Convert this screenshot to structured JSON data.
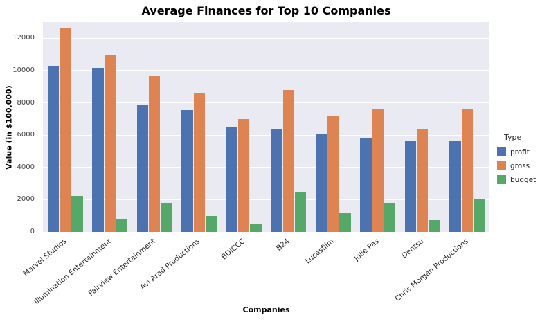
{
  "chart_data": {
    "type": "bar",
    "title": "Average Finances for Top 10 Companies",
    "xlabel": "Companies",
    "ylabel": "Value (in $100,000)",
    "ylim": [
      0,
      13000
    ],
    "yticks": [
      0,
      2000,
      4000,
      6000,
      8000,
      10000,
      12000
    ],
    "grid": true,
    "plot_bg": "#eaeaf2",
    "grid_color": "#ffffff",
    "legend_title": "Type",
    "legend_position": "right",
    "categories": [
      "Marvel Studios",
      "Illumination Entertainment",
      "Fairview Entertainment",
      "Avi Arad Productions",
      "BDICCC",
      "B24",
      "Lucasfilm",
      "Jolie Pas",
      "Dentsu",
      "Chris Morgan Productions"
    ],
    "series": [
      {
        "name": "profit",
        "color": "#4c72b0",
        "values": [
          10300,
          10150,
          7900,
          7550,
          6500,
          6350,
          6050,
          5800,
          5600,
          5600
        ]
      },
      {
        "name": "gross",
        "color": "#dd8452",
        "values": [
          12600,
          11000,
          9650,
          8600,
          7000,
          8800,
          7200,
          7600,
          6350,
          7600
        ]
      },
      {
        "name": "budget",
        "color": "#55a868",
        "values": [
          2250,
          800,
          1800,
          1000,
          500,
          2450,
          1150,
          1800,
          750,
          2050
        ]
      }
    ]
  }
}
